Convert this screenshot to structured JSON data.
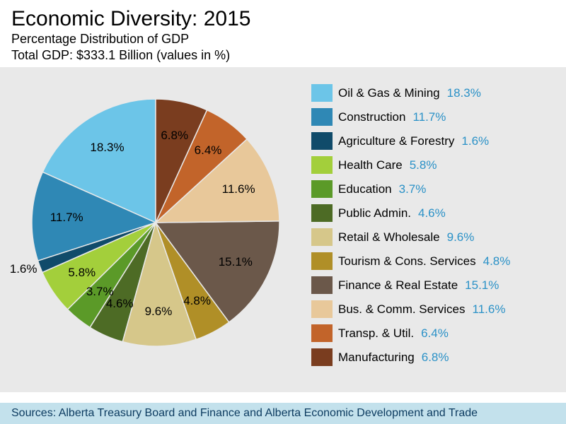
{
  "header": {
    "title": "Economic Diversity: 2015",
    "subtitle_line1": "Percentage Distribution of GDP",
    "subtitle_line2": "Total GDP: $333.1 Billion (values in %)"
  },
  "chart": {
    "type": "pie",
    "background_color": "#e9e9e9",
    "start_angle_deg": -90,
    "direction": "clockwise",
    "label_fontsize": 17,
    "label_color": "#000000",
    "slices": [
      {
        "label": "Oil & Gas & Mining",
        "value": 18.3,
        "color": "#6cc5e8"
      },
      {
        "label": "Construction",
        "value": 11.7,
        "color": "#2f88b5"
      },
      {
        "label": "Agriculture & Forestry",
        "value": 1.6,
        "color": "#104b6a"
      },
      {
        "label": "Health Care",
        "value": 5.8,
        "color": "#a3cf3b"
      },
      {
        "label": "Education",
        "value": 3.7,
        "color": "#5b9a28"
      },
      {
        "label": "Public Admin.",
        "value": 4.6,
        "color": "#4d6b25"
      },
      {
        "label": "Retail & Wholesale",
        "value": 9.6,
        "color": "#d6c78a"
      },
      {
        "label": "Tourism & Cons. Services",
        "value": 4.8,
        "color": "#b08f27"
      },
      {
        "label": "Finance & Real Estate",
        "value": 15.1,
        "color": "#6b584a"
      },
      {
        "label": "Bus. & Comm. Services",
        "value": 11.6,
        "color": "#e8c89a"
      },
      {
        "label": "Transp. & Util.",
        "value": 6.4,
        "color": "#c2642a"
      },
      {
        "label": "Manufacturing",
        "value": 6.8,
        "color": "#7a3d1f"
      }
    ]
  },
  "legend": {
    "label_color": "#000000",
    "value_color": "#2a91c7",
    "fontsize": 17,
    "swatch_width": 30,
    "swatch_height": 25
  },
  "footer": {
    "text": "Sources: Alberta Treasury Board and Finance and Alberta Economic Development and Trade",
    "background_color": "#c3e1ec",
    "text_color": "#0b3a5f"
  }
}
